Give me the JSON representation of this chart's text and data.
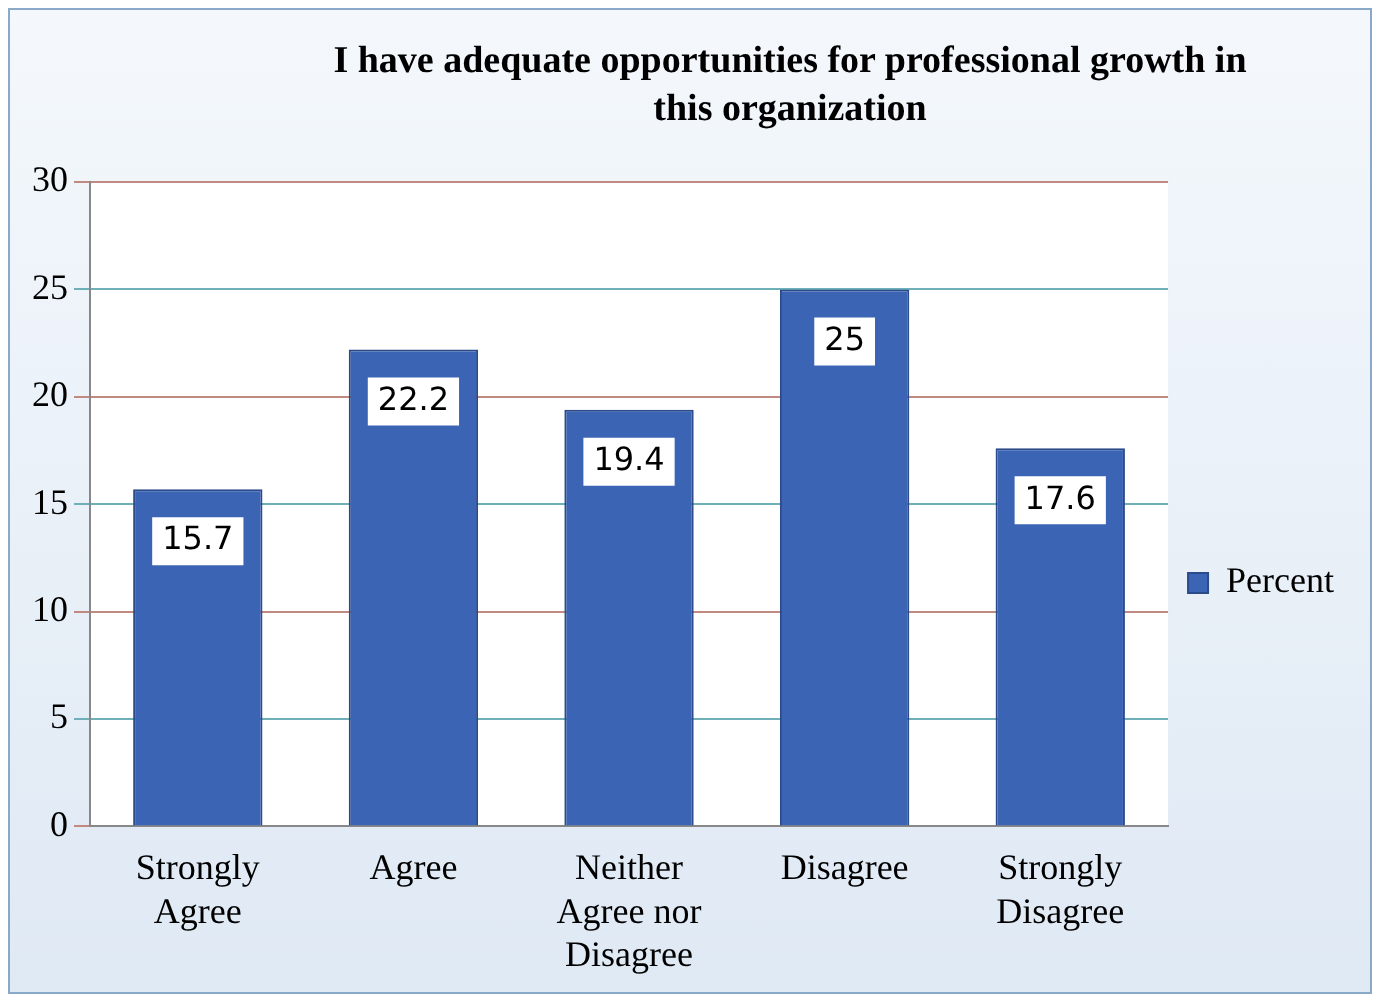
{
  "chart_data": {
    "type": "bar",
    "title": "I have adequate opportunities for professional growth in this organization",
    "categories": [
      "Strongly Agree",
      "Agree",
      "Neither Agree nor Disagree",
      "Disagree",
      "Strongly Disagree"
    ],
    "series": [
      {
        "name": "Percent",
        "color": "#3b64b5",
        "values": [
          15.7,
          22.2,
          19.4,
          25,
          17.6
        ]
      }
    ],
    "ylim": [
      0,
      30
    ],
    "yticks": [
      0,
      5,
      10,
      15,
      20,
      25,
      30
    ],
    "grid": "y",
    "legend": "right",
    "data_labels": true
  }
}
